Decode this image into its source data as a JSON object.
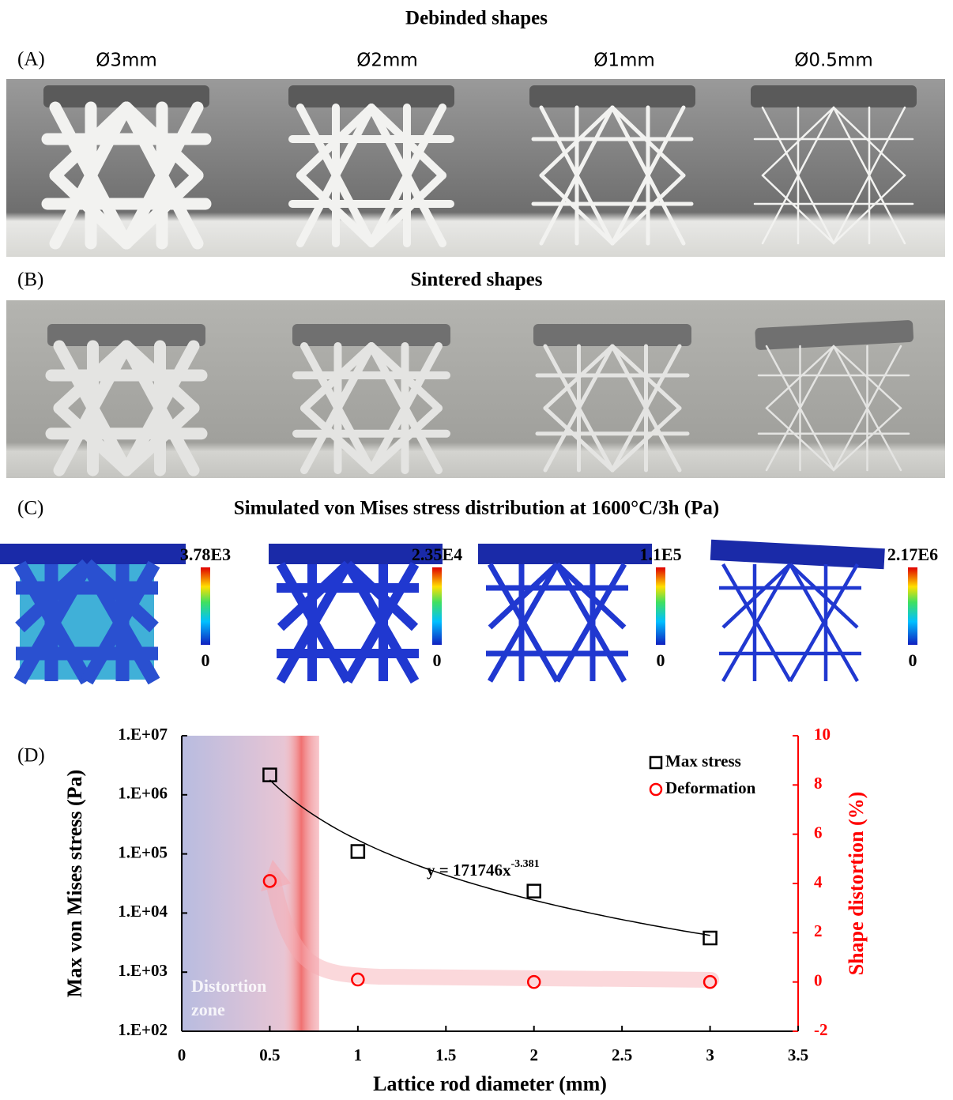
{
  "panels": {
    "a": {
      "label": "(A)",
      "title": "Debinded shapes",
      "diameters": [
        "Ø3mm",
        "Ø2mm",
        "Ø1mm",
        "Ø0.5mm"
      ]
    },
    "b": {
      "label": "(B)",
      "title": "Sintered shapes"
    },
    "c": {
      "label": "(C)",
      "title": "Simulated von Mises stress distribution at 1600°C/3h  (Pa)",
      "colorbars": [
        {
          "max": "3.78E3",
          "min": "0"
        },
        {
          "max": "2.35E4",
          "min": "0"
        },
        {
          "max": "1.1E5",
          "min": "0"
        },
        {
          "max": "2.17E6",
          "min": "0"
        }
      ]
    },
    "d": {
      "label": "(D)"
    }
  },
  "chart_data": {
    "type": "scatter",
    "x_label": "Lattice rod diameter (mm)",
    "y_label": "Max von Mises stress (Pa)",
    "y2_label": "Shape distortion (%)",
    "x": [
      0.5,
      1,
      2,
      3
    ],
    "series": [
      {
        "name": "Max stress",
        "color": "#000000",
        "marker": "square",
        "values": [
          2170000,
          110000,
          23500,
          3780
        ]
      },
      {
        "name": "Deformation",
        "color": "#ff0000",
        "marker": "circle",
        "axis": "y2",
        "values": [
          4.1,
          0.1,
          0,
          0
        ]
      }
    ],
    "xlim": [
      0,
      3.5
    ],
    "xticks": [
      0,
      0.5,
      1,
      1.5,
      2,
      2.5,
      3,
      3.5
    ],
    "ylim": [
      100,
      10000000
    ],
    "log_y": true,
    "yticks": [
      {
        "value": 100,
        "label": "1.E+02"
      },
      {
        "value": 1000,
        "label": "1.E+03"
      },
      {
        "value": 10000,
        "label": "1.E+04"
      },
      {
        "value": 100000,
        "label": "1.E+05"
      },
      {
        "value": 1000000,
        "label": "1.E+06"
      },
      {
        "value": 10000000,
        "label": "1.E+07"
      }
    ],
    "y2lim": [
      -2,
      10
    ],
    "y2ticks": [
      -2,
      0,
      2,
      4,
      6,
      8,
      10
    ],
    "y2_color": "#ff0000",
    "trendline": {
      "coefficient": 171746,
      "exponent": -3.381,
      "x_range": [
        0.5,
        3
      ],
      "label": "y = 171746x",
      "label_exponent": "-3.381"
    },
    "distortion_zone": {
      "label_lines": [
        "Distortion",
        "zone"
      ],
      "x_range": [
        0,
        0.78
      ]
    },
    "legend": "top-right"
  }
}
